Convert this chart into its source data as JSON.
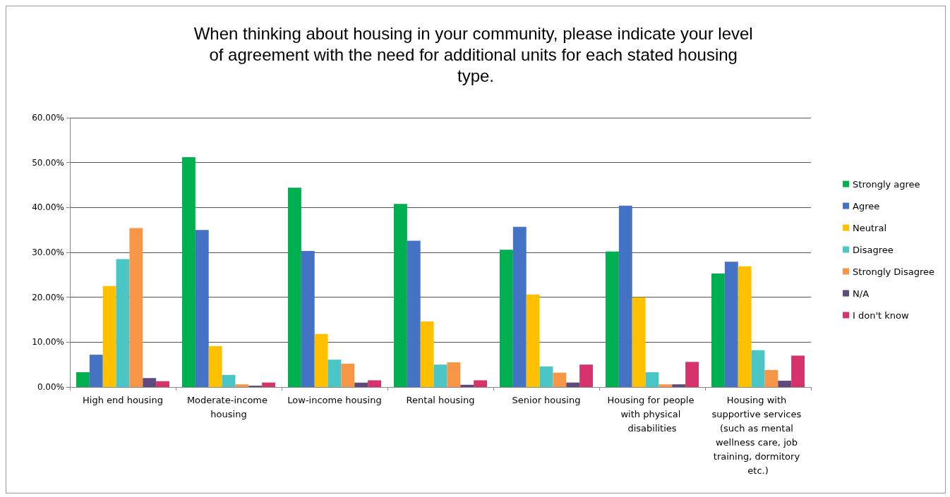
{
  "chart_data": {
    "type": "bar",
    "title": "When thinking about housing in your community, please indicate your level of agreement with the need for additional units for each stated housing type.",
    "categories": [
      "High end housing",
      "Moderate-income housing",
      "Low-income housing",
      "Rental housing",
      "Senior housing",
      "Housing for people with physical disabilities",
      "Housing with supportive services (such as mental wellness care, job training, dormitory etc.)"
    ],
    "series": [
      {
        "name": "Strongly agree",
        "color": "#00b050",
        "values": [
          3.3,
          51.2,
          44.4,
          40.8,
          30.6,
          30.2,
          25.3
        ]
      },
      {
        "name": "Agree",
        "color": "#4472c4",
        "values": [
          7.2,
          35.0,
          30.3,
          32.6,
          35.7,
          40.4,
          27.9
        ]
      },
      {
        "name": "Neutral",
        "color": "#ffc000",
        "values": [
          22.5,
          9.1,
          11.8,
          14.6,
          20.6,
          20.0,
          26.9
        ]
      },
      {
        "name": "Disagree",
        "color": "#4bc6c6",
        "values": [
          28.5,
          2.7,
          6.1,
          5.0,
          4.6,
          3.3,
          8.2
        ]
      },
      {
        "name": "Strongly Disagree",
        "color": "#f79646",
        "values": [
          35.4,
          0.6,
          5.2,
          5.5,
          3.2,
          0.6,
          3.8
        ]
      },
      {
        "name": "N/A",
        "color": "#604a7b",
        "values": [
          2.0,
          0.3,
          1.0,
          0.5,
          1.0,
          0.6,
          1.4
        ]
      },
      {
        "name": "I don't know",
        "color": "#d6336c",
        "values": [
          1.3,
          1.0,
          1.5,
          1.5,
          5.0,
          5.6,
          7.0
        ]
      }
    ],
    "ylim": [
      0,
      60
    ],
    "yticks": [
      {
        "value": 0,
        "label": "0.00%"
      },
      {
        "value": 10,
        "label": "10.00%"
      },
      {
        "value": 20,
        "label": "20.00%"
      },
      {
        "value": 30,
        "label": "30.00%"
      },
      {
        "value": 40,
        "label": "40.00%"
      },
      {
        "value": 50,
        "label": "50.00%"
      },
      {
        "value": 60,
        "label": "60.00%"
      }
    ],
    "grid": "y",
    "legend": "right"
  }
}
